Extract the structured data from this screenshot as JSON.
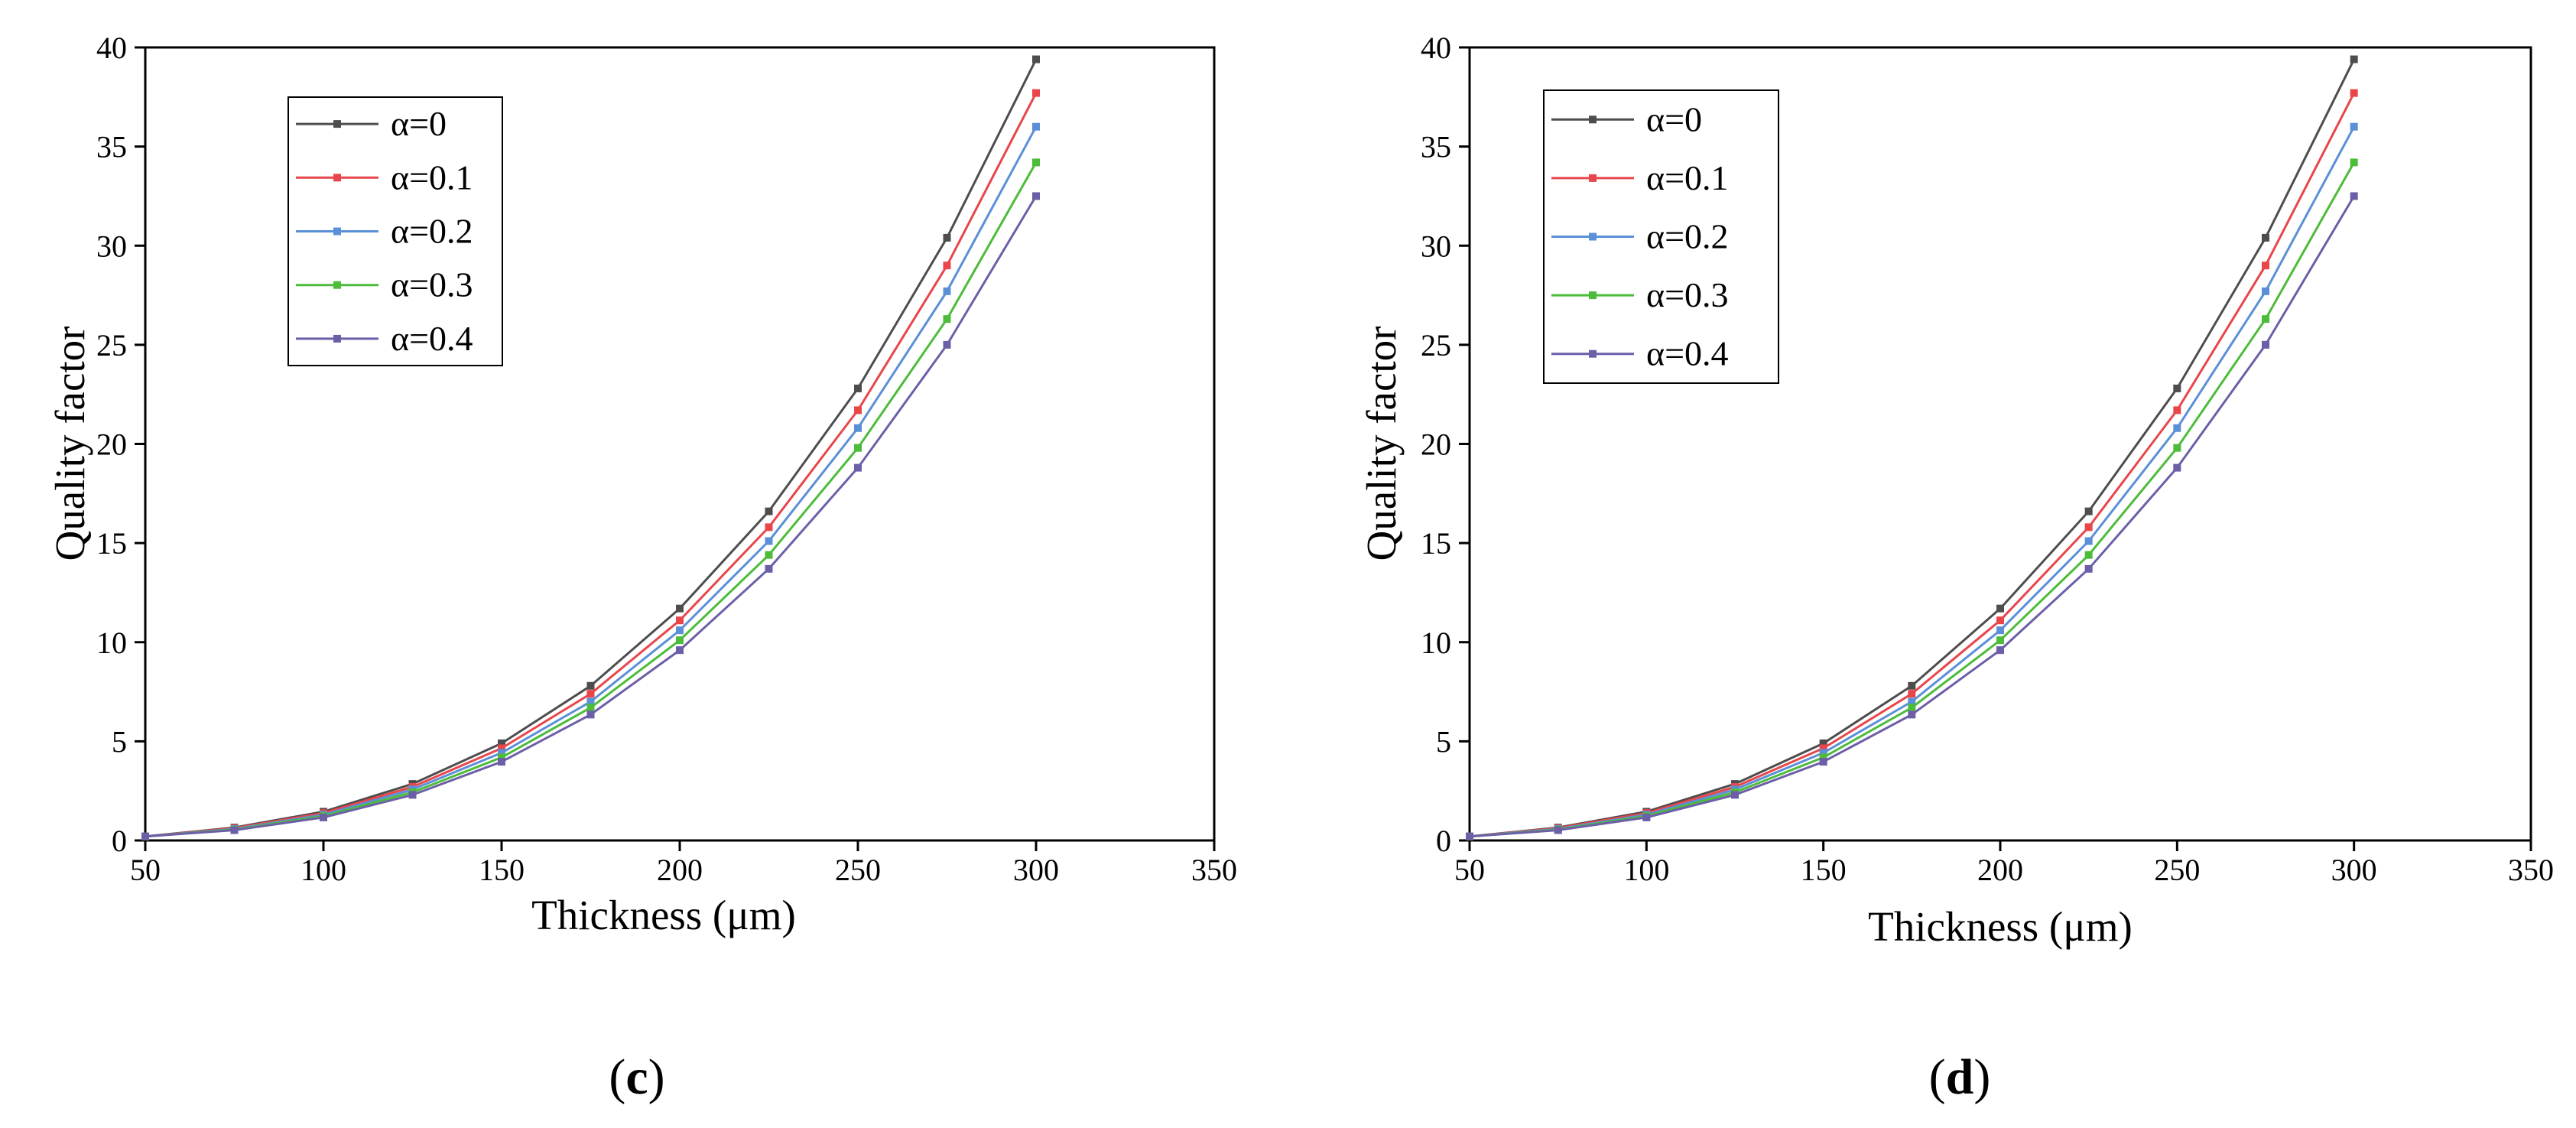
{
  "chart_data": [
    {
      "type": "line",
      "panel_label": {
        "open": "(",
        "letter": "c",
        "close": ")"
      },
      "xlabel": "Thickness (μm)",
      "ylabel": "Quality factor",
      "xlim": [
        50,
        350
      ],
      "ylim": [
        0,
        40
      ],
      "xticks": [
        50,
        100,
        150,
        200,
        250,
        300,
        350
      ],
      "yticks": [
        0,
        5,
        10,
        15,
        20,
        25,
        30,
        35,
        40
      ],
      "grid": false,
      "legend": "top-left",
      "x": [
        50,
        75,
        100,
        125,
        150,
        175,
        200,
        225,
        250,
        275,
        300
      ],
      "series": [
        {
          "name": "α=0",
          "color": "#4d4d4d",
          "values": [
            0.2,
            0.65,
            1.45,
            2.85,
            4.9,
            7.8,
            11.7,
            16.6,
            22.8,
            30.4,
            39.4
          ]
        },
        {
          "name": "α=0.1",
          "color": "#e8464a",
          "values": [
            0.2,
            0.62,
            1.38,
            2.7,
            4.65,
            7.4,
            11.1,
            15.8,
            21.7,
            29.0,
            37.7
          ]
        },
        {
          "name": "α=0.2",
          "color": "#5b8fd8",
          "values": [
            0.2,
            0.58,
            1.3,
            2.57,
            4.42,
            7.0,
            10.6,
            15.1,
            20.8,
            27.7,
            36.0
          ]
        },
        {
          "name": "α=0.3",
          "color": "#4cbc3a",
          "values": [
            0.2,
            0.55,
            1.23,
            2.43,
            4.19,
            6.7,
            10.1,
            14.4,
            19.8,
            26.3,
            34.2
          ]
        },
        {
          "name": "α=0.4",
          "color": "#6c5fa8",
          "values": [
            0.2,
            0.52,
            1.16,
            2.3,
            3.97,
            6.35,
            9.6,
            13.7,
            18.8,
            25.0,
            32.5
          ]
        }
      ]
    },
    {
      "type": "line",
      "panel_label": {
        "open": "(",
        "letter": "d",
        "close": ")"
      },
      "xlabel": "Thickness (μm)",
      "ylabel": "Quality factor",
      "xlim": [
        50,
        350
      ],
      "ylim": [
        0,
        40
      ],
      "xticks": [
        50,
        100,
        150,
        200,
        250,
        300,
        350
      ],
      "yticks": [
        0,
        5,
        10,
        15,
        20,
        25,
        30,
        35,
        40
      ],
      "grid": false,
      "legend": "top-left",
      "x": [
        50,
        75,
        100,
        125,
        150,
        175,
        200,
        225,
        250,
        275,
        300
      ],
      "series": [
        {
          "name": "α=0",
          "color": "#4d4d4d",
          "values": [
            0.2,
            0.65,
            1.45,
            2.85,
            4.9,
            7.8,
            11.7,
            16.6,
            22.8,
            30.4,
            39.4
          ]
        },
        {
          "name": "α=0.1",
          "color": "#e8464a",
          "values": [
            0.2,
            0.62,
            1.38,
            2.7,
            4.65,
            7.4,
            11.1,
            15.8,
            21.7,
            29.0,
            37.7
          ]
        },
        {
          "name": "α=0.2",
          "color": "#5b8fd8",
          "values": [
            0.2,
            0.58,
            1.3,
            2.57,
            4.42,
            7.0,
            10.6,
            15.1,
            20.8,
            27.7,
            36.0
          ]
        },
        {
          "name": "α=0.3",
          "color": "#4cbc3a",
          "values": [
            0.2,
            0.55,
            1.23,
            2.43,
            4.19,
            6.7,
            10.1,
            14.4,
            19.8,
            26.3,
            34.2
          ]
        },
        {
          "name": "α=0.4",
          "color": "#6c5fa8",
          "values": [
            0.2,
            0.52,
            1.16,
            2.3,
            3.97,
            6.35,
            9.6,
            13.7,
            18.8,
            25.0,
            32.5
          ]
        }
      ]
    }
  ]
}
